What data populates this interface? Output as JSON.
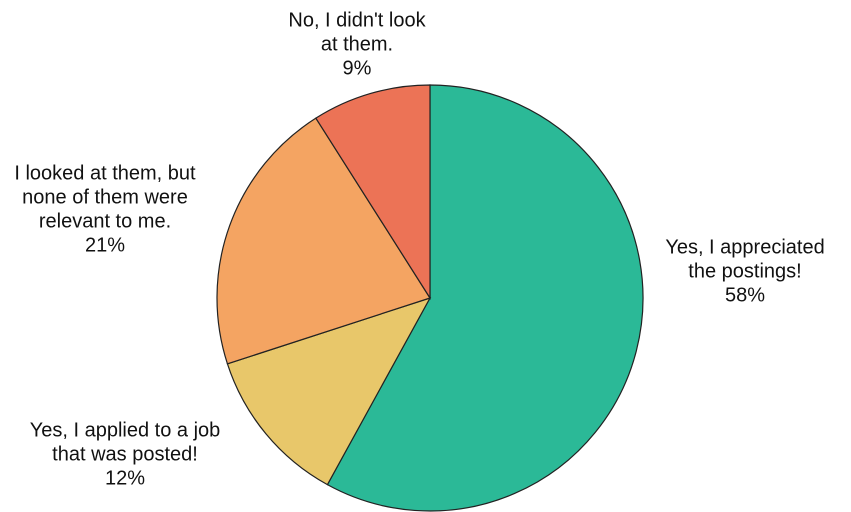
{
  "chart_data": {
    "type": "pie",
    "categories": [
      [
        "Yes, I appreciated",
        "the postings!"
      ],
      [
        "Yes, I applied to a job",
        "that was posted!"
      ],
      [
        "I looked at them, but",
        "none of them were",
        "relevant to me."
      ],
      [
        "No, I didn't look",
        "at them."
      ]
    ],
    "values": [
      58,
      12,
      21,
      9
    ],
    "value_labels": [
      "58%",
      "12%",
      "21%",
      "9%"
    ],
    "colors": [
      "#2bb997",
      "#e8c76a",
      "#f4a462",
      "#ec7356"
    ]
  }
}
